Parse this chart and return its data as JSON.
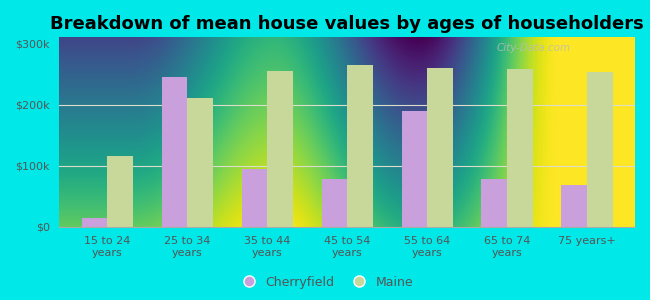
{
  "title": "Breakdown of mean house values by ages of householders",
  "categories": [
    "15 to 24\nyears",
    "25 to 34\nyears",
    "35 to 44\nyears",
    "45 to 54\nyears",
    "55 to 64\nyears",
    "65 to 74\nyears",
    "75 years+"
  ],
  "cherryfield": [
    15000,
    245000,
    95000,
    78000,
    190000,
    78000,
    68000
  ],
  "maine": [
    115000,
    210000,
    255000,
    265000,
    260000,
    258000,
    253000
  ],
  "cherryfield_color": "#c9a0dc",
  "maine_color": "#c8d89a",
  "background_color": "#00e8e8",
  "plot_bg_top": "#e8f5e2",
  "plot_bg_bottom": "#f8fff4",
  "yticks": [
    0,
    100000,
    200000,
    300000
  ],
  "ylabels": [
    "$0",
    "$100k",
    "$200k",
    "$300k"
  ],
  "ylim": [
    0,
    310000
  ],
  "legend_labels": [
    "Cherryfield",
    "Maine"
  ],
  "bar_width": 0.32,
  "title_fontsize": 13,
  "tick_fontsize": 8,
  "legend_fontsize": 9
}
